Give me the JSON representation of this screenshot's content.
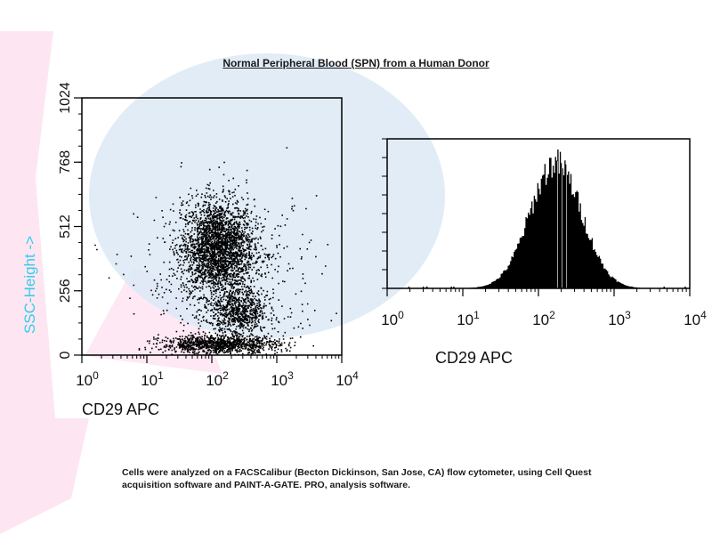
{
  "title": "Normal Peripheral Blood (SPN) from a Human Donor",
  "footnote": {
    "line1": "Cells were analyzed on a FACSCalibur (Becton Dickinson, San Jose, CA) flow cytometer, using Cell Quest",
    "line2": "acquisition software and PAINT-A-GATE. PRO, analysis software."
  },
  "colors": {
    "axis": "#000000",
    "ylabel": "#33ccee",
    "dot": "#000000",
    "bg_pink": "#fde6f2",
    "bg_blue": "#dde9f6"
  },
  "chart_data": [
    {
      "type": "scatter",
      "xlabel": "CD29 APC",
      "ylabel": "SSC-Height ->",
      "x_scale": "log",
      "xlim": [
        1,
        10000
      ],
      "ylim": [
        0,
        1024
      ],
      "x_ticks": [
        {
          "base": "10",
          "exp": "0"
        },
        {
          "base": "10",
          "exp": "1"
        },
        {
          "base": "10",
          "exp": "2"
        },
        {
          "base": "10",
          "exp": "3"
        },
        {
          "base": "10",
          "exp": "4"
        }
      ],
      "y_ticks": [
        "0",
        "256",
        "512",
        "768",
        "1024"
      ],
      "populations": [
        {
          "x_center": 120,
          "y_center": 430,
          "x_spread_log": 0.28,
          "y_spread": 95,
          "n": 2600
        },
        {
          "x_center": 260,
          "y_center": 170,
          "x_spread_log": 0.22,
          "y_spread": 45,
          "n": 700
        },
        {
          "x_center": 130,
          "y_center": 45,
          "x_spread_log": 0.45,
          "y_spread": 18,
          "n": 1100
        },
        {
          "x_center": 200,
          "y_center": 300,
          "x_spread_log": 0.7,
          "y_spread": 160,
          "n": 450
        }
      ]
    },
    {
      "type": "histogram",
      "xlabel": "CD29 APC",
      "x_scale": "log",
      "xlim": [
        1,
        10000
      ],
      "x_ticks": [
        {
          "base": "10",
          "exp": "0"
        },
        {
          "base": "10",
          "exp": "1"
        },
        {
          "base": "10",
          "exp": "2"
        },
        {
          "base": "10",
          "exp": "3"
        },
        {
          "base": "10",
          "exp": "4"
        }
      ],
      "peak_x": 170,
      "peak_spread_log": 0.34,
      "n_bins": 256
    }
  ]
}
